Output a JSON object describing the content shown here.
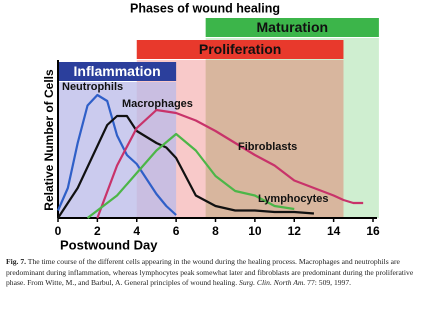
{
  "chart_data": {
    "type": "line",
    "title": "Phases of wound healing",
    "x_label": "Postwound Day",
    "y_label": "Relative Number of Cells",
    "xlim": [
      0,
      16
    ],
    "xticks": [
      0,
      2,
      4,
      6,
      8,
      10,
      12,
      14,
      16
    ],
    "ylim": [
      0,
      100
    ],
    "phases": [
      {
        "name": "Maturation",
        "color": "#3cb54a",
        "start": 7.5,
        "end": 16.3
      },
      {
        "name": "Proliferation",
        "color": "#e8392c",
        "start": 4,
        "end": 14.5
      },
      {
        "name": "Inflammation",
        "color": "#2b3f9c",
        "start": 0,
        "end": 6
      }
    ],
    "series": [
      {
        "name": "Neutrophils",
        "color": "#2f5fc8",
        "x": [
          0,
          0.5,
          1,
          1.5,
          2,
          2.5,
          3,
          3.5,
          4,
          4.5,
          5,
          5.5,
          6
        ],
        "values": [
          5,
          20,
          50,
          75,
          82,
          78,
          55,
          42,
          36,
          26,
          16,
          8,
          2
        ]
      },
      {
        "name": "Macrophages",
        "color": "#111111",
        "x": [
          0,
          1,
          2,
          2.5,
          3,
          3.5,
          4,
          5,
          5.5,
          6,
          7,
          8,
          9,
          10,
          11,
          12,
          13
        ],
        "values": [
          0,
          20,
          48,
          62,
          68,
          68,
          58,
          50,
          47,
          40,
          15,
          8,
          5,
          5,
          4,
          4,
          3
        ]
      },
      {
        "name": "Fibroblasts",
        "color": "#c8336a",
        "x": [
          2,
          3,
          4,
          5,
          6,
          7,
          8,
          9,
          10,
          11,
          12,
          13,
          14,
          14.5,
          15,
          15.5
        ],
        "values": [
          0,
          35,
          60,
          72,
          70,
          65,
          58,
          50,
          42,
          35,
          25,
          20,
          15,
          12,
          10,
          10
        ]
      },
      {
        "name": "Lymphocytes",
        "color": "#4cb648",
        "x": [
          1.5,
          3,
          4,
          5,
          6,
          7,
          8,
          9,
          10,
          11,
          12
        ],
        "values": [
          0,
          15,
          30,
          45,
          56,
          45,
          28,
          18,
          15,
          8,
          6
        ]
      }
    ],
    "caption": [
      "Fig. 7.",
      " The time course of the different cells appearing in the wound during the healing process. Macrophages and neutrophils are predominant during inflammation, whereas lymphocytes peak somewhat later and fibroblasts are predominant during the proliferative phase. From Witte, M., and Barbul, A. General principles of wound healing. ",
      "Surg. Clin. North Am.",
      " 77: 509, 1997."
    ]
  }
}
